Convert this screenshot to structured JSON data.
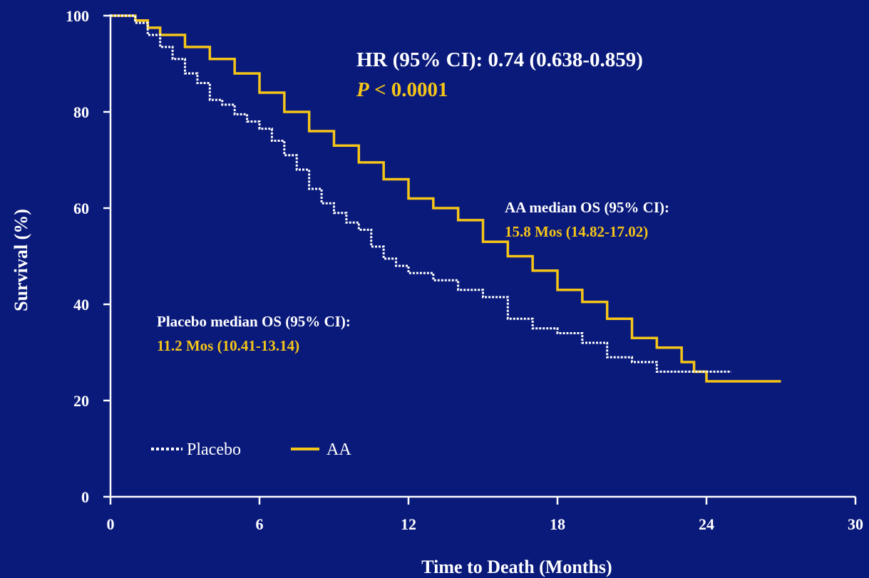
{
  "chart_data": {
    "type": "line",
    "step": true,
    "xlabel": "Time to Death (Months)",
    "ylabel": "Survival (%)",
    "xlim": [
      0,
      30
    ],
    "ylim": [
      0,
      100
    ],
    "xticks": [
      0,
      6,
      12,
      18,
      24,
      30
    ],
    "yticks": [
      0,
      20,
      40,
      60,
      80,
      100
    ],
    "grid": false,
    "legend_position": "bottom-left",
    "background": "#0a1a7a",
    "annotations": {
      "hr": {
        "text": "HR (95% CI): 0.74 (0.638-0.859)",
        "color": "#ffffff"
      },
      "p_italic": {
        "text": "P",
        "color": "#f5c518"
      },
      "p_rest": {
        "text": " < 0.0001",
        "color": "#f5c518"
      },
      "aa_title": {
        "text": "AA median OS (95% CI):",
        "color": "#ffffff"
      },
      "aa_value": {
        "text": "15.8 Mos (14.82-17.02)",
        "color": "#f5c518"
      },
      "pl_title": {
        "text": "Placebo median OS (95% CI):",
        "color": "#ffffff"
      },
      "pl_value": {
        "text": "11.2 Mos (10.41-13.14)",
        "color": "#f5c518"
      }
    },
    "series": [
      {
        "name": "Placebo",
        "color": "#ffffff",
        "style": "dotted",
        "x": [
          0,
          0.7,
          1.0,
          1.5,
          2.0,
          2.5,
          3.0,
          3.5,
          4.0,
          4.5,
          5.0,
          5.5,
          6.0,
          6.5,
          7.0,
          7.5,
          8.0,
          8.5,
          9.0,
          9.5,
          10.0,
          10.5,
          11.0,
          11.5,
          12.0,
          13.0,
          14.0,
          15.0,
          16.0,
          17.0,
          18.0,
          19.0,
          20.0,
          21.0,
          22.0,
          23.0,
          24.0,
          25.0
        ],
        "y": [
          100,
          100,
          98.5,
          96,
          93.5,
          91,
          88,
          86,
          82.5,
          81.5,
          79.5,
          78,
          76.5,
          74,
          71,
          68,
          64,
          61,
          59,
          57,
          55.5,
          52,
          49.5,
          48,
          46.5,
          45,
          43,
          41.5,
          37,
          35,
          34,
          32,
          29,
          28,
          26,
          26,
          26,
          26
        ]
      },
      {
        "name": "AA",
        "color": "#f5c518",
        "style": "solid",
        "x": [
          0,
          0.7,
          1.0,
          1.5,
          2.0,
          3.0,
          4.0,
          5.0,
          6.0,
          7.0,
          8.0,
          9.0,
          10.0,
          11.0,
          12.0,
          13.0,
          14.0,
          15.0,
          16.0,
          17.0,
          18.0,
          19.0,
          20.0,
          21.0,
          22.0,
          23.0,
          23.5,
          24.0,
          27.0
        ],
        "y": [
          100,
          100,
          99,
          97.5,
          96,
          93.5,
          91,
          88,
          84,
          80,
          76,
          73,
          69.5,
          66,
          62,
          60,
          57.5,
          53,
          50,
          47,
          43,
          40.5,
          37,
          33,
          31,
          28,
          26,
          24,
          24
        ]
      }
    ]
  }
}
